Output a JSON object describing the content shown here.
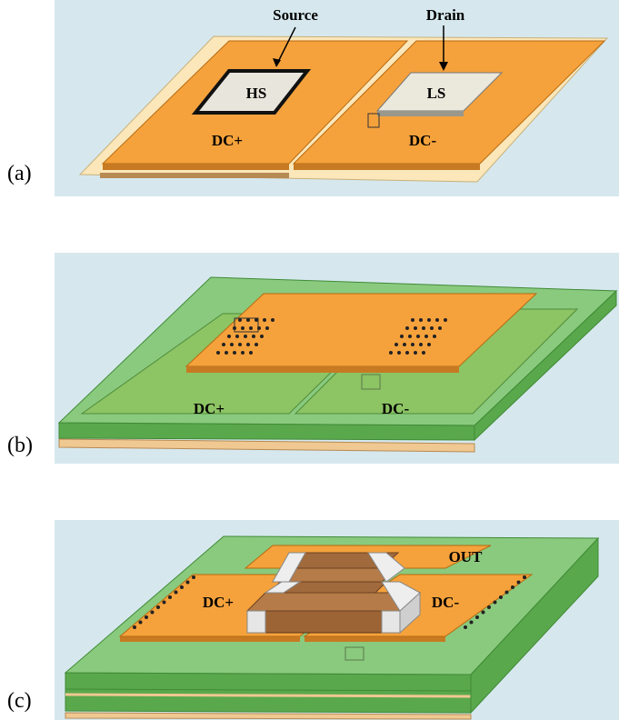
{
  "panel_a": {
    "label": "(a)",
    "source": "Source",
    "drain": "Drain",
    "hs": "HS",
    "ls": "LS",
    "dc_plus": "DC+",
    "dc_minus": "DC-"
  },
  "panel_b": {
    "label": "(b)",
    "dc_plus": "DC+",
    "dc_minus": "DC-"
  },
  "panel_c": {
    "label": "(c)",
    "out": "OUT",
    "dc_plus": "DC+",
    "dc_minus": "DC-"
  }
}
